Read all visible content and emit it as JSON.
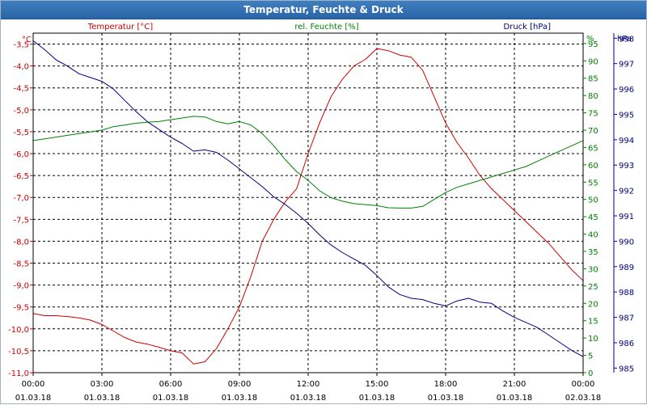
{
  "window": {
    "title": "Temperatur, Feuchte & Druck"
  },
  "chart_data": {
    "type": "line",
    "title": "Temperatur, Feuchte & Druck",
    "x": [
      0,
      0.5,
      1,
      1.5,
      2,
      2.5,
      3,
      3.5,
      4,
      4.5,
      5,
      5.5,
      6,
      6.5,
      7,
      7.5,
      8,
      8.5,
      9,
      9.5,
      10,
      10.5,
      11,
      11.5,
      12,
      12.5,
      13,
      13.5,
      14,
      14.5,
      15,
      15.5,
      16,
      16.5,
      17,
      17.5,
      18,
      18.5,
      19,
      19.5,
      20,
      20.5,
      21,
      21.5,
      22,
      22.5,
      23,
      23.5,
      24
    ],
    "xlim": [
      0,
      24
    ],
    "x_ticks": [
      0,
      3,
      6,
      9,
      12,
      15,
      18,
      21,
      24
    ],
    "x_tick_time": [
      "00:00",
      "03:00",
      "06:00",
      "09:00",
      "12:00",
      "15:00",
      "18:00",
      "21:00",
      "00:00"
    ],
    "x_tick_date": [
      "01.03.18",
      "01.03.18",
      "01.03.18",
      "01.03.18",
      "01.03.18",
      "01.03.18",
      "01.03.18",
      "01.03.18",
      "02.03.18"
    ],
    "axes": {
      "temperature": {
        "label": "Temperatur [°C]",
        "unit": "°C",
        "color": "#cc0000",
        "ylim": [
          -11.0,
          -3.25
        ],
        "ticks": [
          "-3,5",
          "-4,0",
          "-4,5",
          "-5,0",
          "-5,5",
          "-6,0",
          "-6,5",
          "-7,0",
          "-7,5",
          "-8,0",
          "-8,5",
          "-9,0",
          "-9,5",
          "-10,0",
          "-10,5",
          "-11,0"
        ]
      },
      "humidity": {
        "label": "rel. Feuchte [%]",
        "unit": "%",
        "color": "#008000",
        "ylim": [
          0,
          98
        ],
        "ticks": [
          "95",
          "90",
          "85",
          "80",
          "75",
          "70",
          "65",
          "60",
          "55",
          "50",
          "45",
          "40",
          "35",
          "30",
          "25",
          "20",
          "15",
          "10",
          "5",
          "0"
        ]
      },
      "pressure": {
        "label": "Druck [hPa]",
        "unit": "hPa",
        "color": "#000080",
        "ylim": [
          984.82,
          998.2
        ],
        "ticks": [
          "998",
          "997",
          "996",
          "995",
          "994",
          "993",
          "992",
          "991",
          "990",
          "989",
          "988",
          "987",
          "986",
          "985"
        ]
      }
    },
    "series": [
      {
        "name": "Temperatur",
        "axis": "temperature",
        "color": "#cc0000",
        "values": [
          -9.65,
          -9.7,
          -9.7,
          -9.72,
          -9.75,
          -9.8,
          -9.9,
          -10.05,
          -10.2,
          -10.3,
          -10.35,
          -10.42,
          -10.5,
          -10.55,
          -10.8,
          -10.75,
          -10.45,
          -10.0,
          -9.5,
          -8.8,
          -8.0,
          -7.5,
          -7.1,
          -6.8,
          -6.0,
          -5.3,
          -4.7,
          -4.3,
          -4.0,
          -3.85,
          -3.6,
          -3.65,
          -3.75,
          -3.8,
          -4.1,
          -4.7,
          -5.3,
          -5.75,
          -6.1,
          -6.5,
          -6.8,
          -7.05,
          -7.3,
          -7.55,
          -7.8,
          -8.05,
          -8.35,
          -8.65,
          -8.9
        ]
      },
      {
        "name": "rel. Feuchte",
        "axis": "humidity",
        "color": "#008000",
        "values": [
          67,
          67.5,
          68,
          68.5,
          69,
          69.5,
          70,
          71,
          71.5,
          72,
          72.3,
          72.5,
          73,
          73.5,
          74,
          73.8,
          72.5,
          71.8,
          72.5,
          71.5,
          69,
          65.5,
          61.5,
          58,
          55.5,
          52.5,
          50.5,
          49.5,
          48.8,
          48.5,
          48.2,
          47.6,
          47.5,
          47.5,
          48,
          50,
          52,
          53.5,
          54.5,
          55.5,
          56.5,
          57.5,
          58.5,
          59.5,
          61,
          62.5,
          64,
          65.5,
          67
        ]
      },
      {
        "name": "Druck",
        "axis": "pressure",
        "color": "#000080",
        "values": [
          997.9,
          997.55,
          997.15,
          996.9,
          996.6,
          996.45,
          996.3,
          996.0,
          995.55,
          995.1,
          994.7,
          994.4,
          994.1,
          993.85,
          993.55,
          993.6,
          993.5,
          993.2,
          992.85,
          992.5,
          992.15,
          991.75,
          991.45,
          991.1,
          990.7,
          990.25,
          989.85,
          989.55,
          989.3,
          989.05,
          988.65,
          988.2,
          987.9,
          987.75,
          987.7,
          987.55,
          987.45,
          987.65,
          987.75,
          987.6,
          987.55,
          987.25,
          987.0,
          986.8,
          986.6,
          986.3,
          986.0,
          985.7,
          985.45
        ]
      }
    ]
  }
}
